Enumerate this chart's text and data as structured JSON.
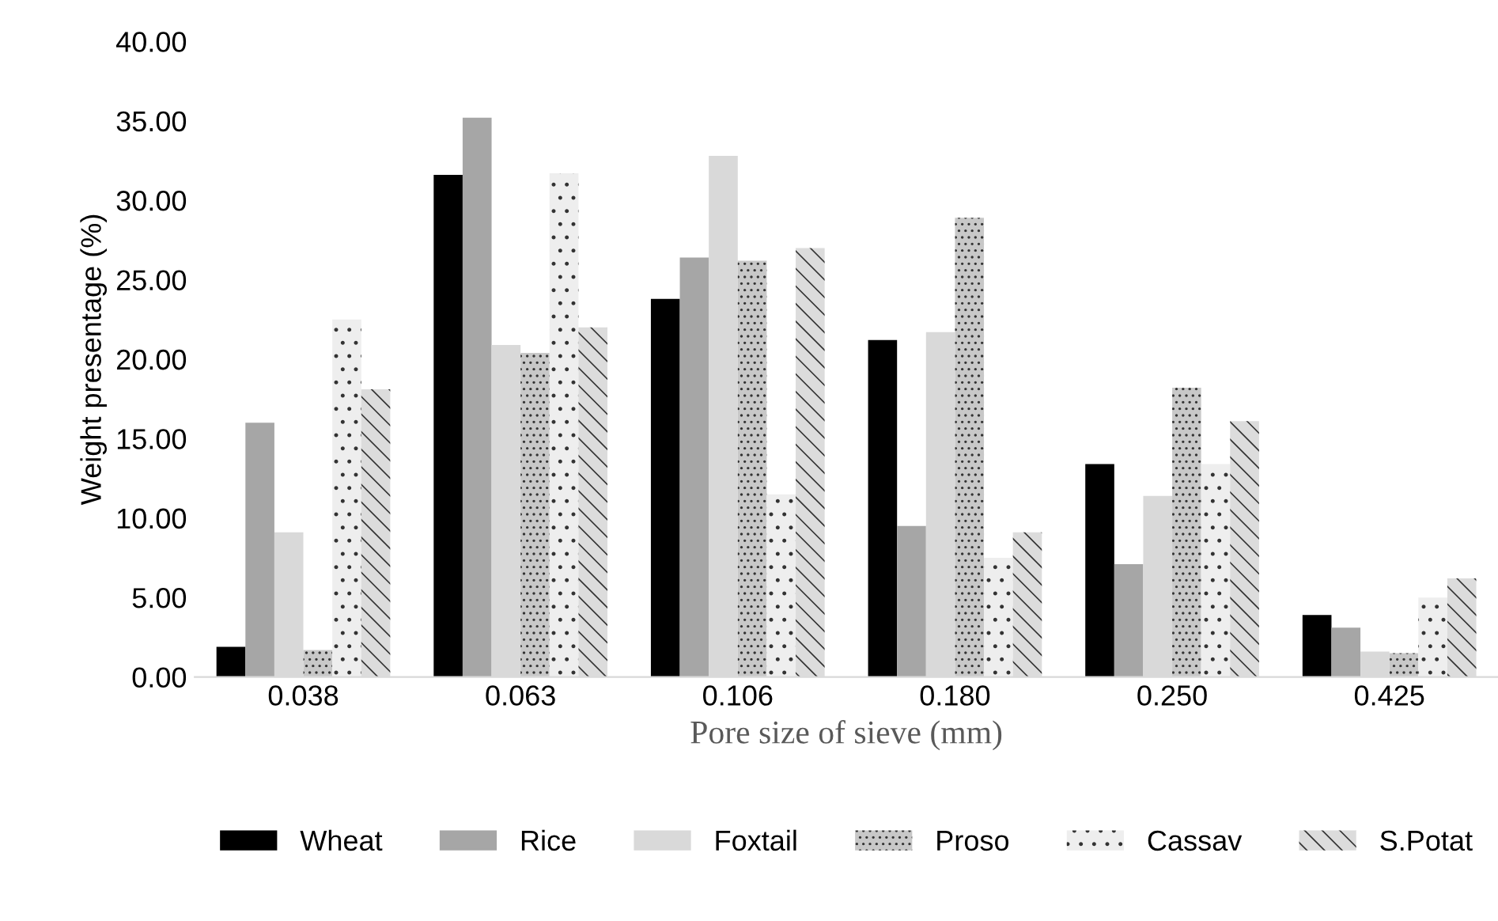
{
  "chart_data": {
    "type": "bar",
    "categories": [
      "0.038",
      "0.063",
      "0.106",
      "0.180",
      "0.250",
      "0.425"
    ],
    "xlabel": "Pore size of sieve (mm)",
    "ylabel": "Weight presentage (%)",
    "ylim": [
      0,
      40
    ],
    "yticks": [
      {
        "value": 0,
        "label": "0.00"
      },
      {
        "value": 5,
        "label": "5.00"
      },
      {
        "value": 10,
        "label": "10.00"
      },
      {
        "value": 15,
        "label": "15.00"
      },
      {
        "value": 20,
        "label": "20.00"
      },
      {
        "value": 25,
        "label": "25.00"
      },
      {
        "value": 30,
        "label": "30.00"
      },
      {
        "value": 35,
        "label": "35.00"
      },
      {
        "value": 40,
        "label": "40.00"
      }
    ],
    "grid": false,
    "legend": "bottom",
    "series": [
      {
        "name": "Wheat",
        "color": "#000000",
        "values": [
          1.9,
          31.6,
          23.8,
          21.2,
          13.4,
          3.9
        ]
      },
      {
        "name": "Rice",
        "color": "#a6a6a6",
        "values": [
          16.0,
          35.2,
          26.4,
          9.5,
          7.1,
          3.1
        ]
      },
      {
        "name": "Foxtail",
        "color": "#d9d9d9",
        "values": [
          9.1,
          20.9,
          32.8,
          21.7,
          11.4,
          1.6
        ]
      },
      {
        "name": "Proso",
        "color": "#c8c8c8",
        "values": [
          1.7,
          20.4,
          26.2,
          28.9,
          18.2,
          1.5
        ]
      },
      {
        "name": "Cassav",
        "color": "#eeeeee",
        "values": [
          22.5,
          31.7,
          11.5,
          7.5,
          13.4,
          5.0
        ]
      },
      {
        "name": "S.Potat",
        "color": "#dcdcdc",
        "values": [
          18.1,
          22.0,
          27.0,
          9.1,
          16.1,
          6.2
        ]
      }
    ]
  }
}
